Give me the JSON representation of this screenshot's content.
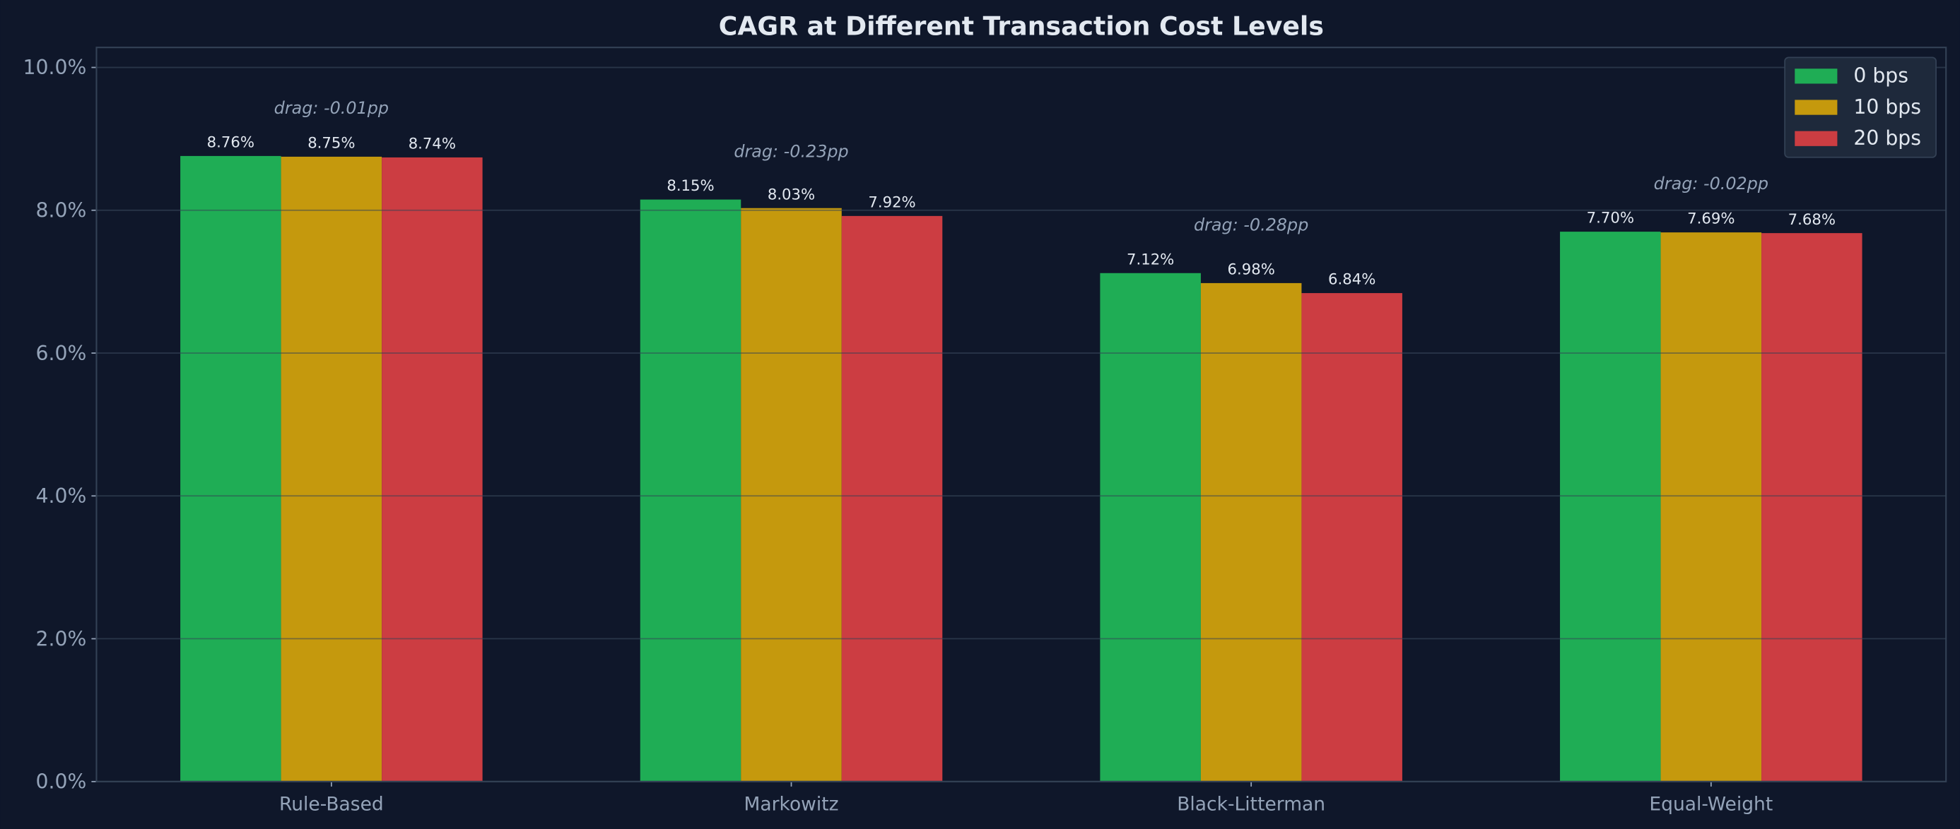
{
  "chart_data": {
    "type": "bar",
    "title": "CAGR at Different Transaction Cost Levels",
    "xlabel": "",
    "ylabel": "",
    "categories": [
      "Rule-Based",
      "Markowitz",
      "Black-Litterman",
      "Equal-Weight"
    ],
    "series": [
      {
        "name": "0 bps",
        "color": "#1fad55",
        "values": [
          8.76,
          8.15,
          7.12,
          7.7
        ],
        "labels": [
          "8.76%",
          "8.15%",
          "7.12%",
          "7.70%"
        ]
      },
      {
        "name": "10 bps",
        "color": "#c5990d",
        "values": [
          8.75,
          8.03,
          6.98,
          7.69
        ],
        "labels": [
          "8.75%",
          "8.03%",
          "6.98%",
          "7.69%"
        ]
      },
      {
        "name": "20 bps",
        "color": "#cc3d42",
        "values": [
          8.74,
          7.92,
          6.84,
          7.68
        ],
        "labels": [
          "8.74%",
          "7.92%",
          "6.84%",
          "7.68%"
        ]
      }
    ],
    "annotations": [
      "drag: -0.01pp",
      "drag: -0.23pp",
      "drag: -0.28pp",
      "drag: -0.02pp"
    ],
    "ylim": [
      0,
      10.28
    ],
    "yticks": [
      0,
      2,
      4,
      6,
      8,
      10
    ],
    "ytick_labels": [
      "0.0%",
      "2.0%",
      "4.0%",
      "6.0%",
      "8.0%",
      "10.0%"
    ],
    "grid": "y",
    "legend": "top-right",
    "background": "#0f172a"
  }
}
